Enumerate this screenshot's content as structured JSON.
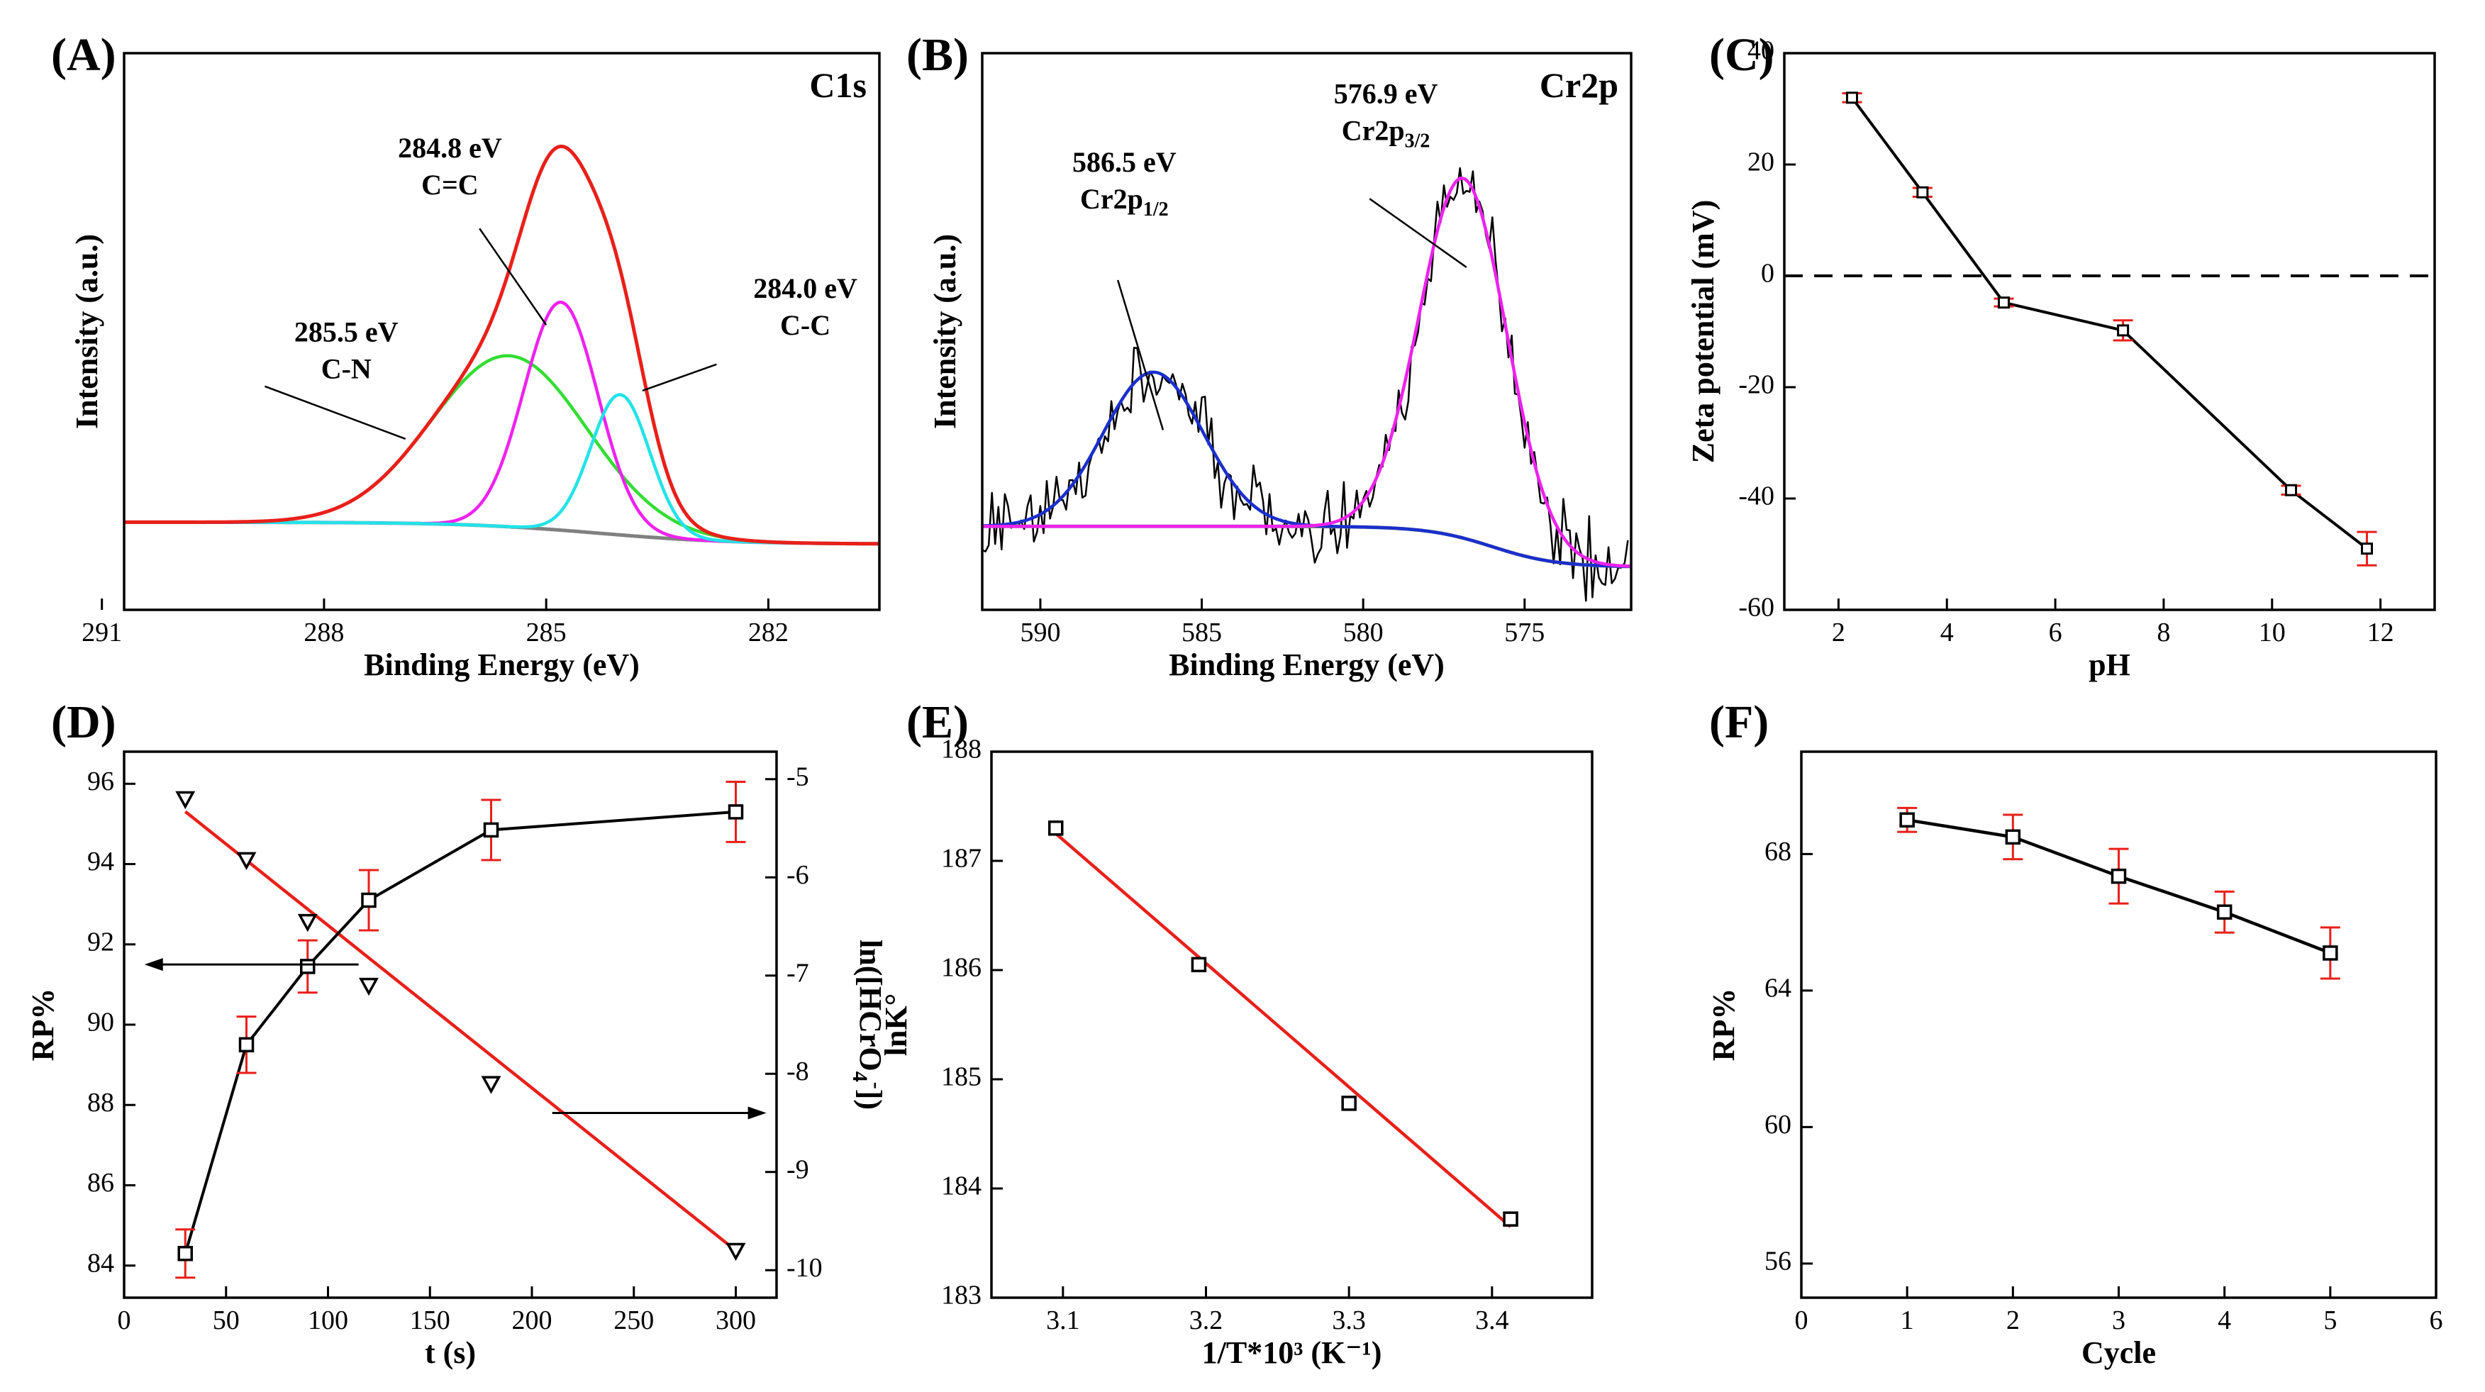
{
  "chart_data": [
    {
      "panel": "A",
      "panel_label": "(A)",
      "type": "line",
      "title": "C1s",
      "xlabel": "Binding Energy (eV)",
      "ylabel": "Intensity (a.u.)",
      "xlim": [
        290.7,
        280.5
      ],
      "ylim": [
        -0.15,
        1.12
      ],
      "xticks": [
        291,
        288,
        285,
        282
      ],
      "xtick_labels": [
        "291",
        "288",
        "285",
        "282"
      ],
      "yticks": [],
      "colors": {
        "envelope": "#e8201a",
        "background": "#808080",
        "cn": "#33dd33",
        "cc_double": "#ee22ee",
        "cc": "#22e3e8"
      },
      "series": [
        {
          "name": "Background",
          "kind": "background",
          "color": "#808080",
          "base_high": 0.05,
          "base_low": 0.0,
          "center": 284.3,
          "width": 0.9
        },
        {
          "name": "C-N",
          "kind": "peak",
          "color": "#33dd33",
          "center": 285.5,
          "amplitude": 0.39,
          "sigma": 1.05
        },
        {
          "name": "C=C",
          "kind": "peak",
          "color": "#ee22ee",
          "center": 284.8,
          "amplitude": 0.52,
          "sigma": 0.5
        },
        {
          "name": "C-C",
          "kind": "peak",
          "color": "#22e3e8",
          "center": 284.0,
          "amplitude": 0.32,
          "sigma": 0.4
        },
        {
          "name": "Envelope",
          "kind": "envelope",
          "color": "#e8201a"
        }
      ],
      "annotations": [
        {
          "energy": "285.5 eV",
          "label": "C-N",
          "sub": "",
          "tx": 287.7,
          "ty": 0.42,
          "ax": 286.9,
          "ay": 0.24,
          "bx": 288.8,
          "by": 0.36
        },
        {
          "energy": "284.8 eV",
          "label": "C=C",
          "sub": "",
          "tx": 286.3,
          "ty": 0.84,
          "ax": 285.9,
          "ay": 0.72,
          "bx": 285.0,
          "by": 0.5
        },
        {
          "energy": "284.0 eV",
          "label": "C-C",
          "sub": "",
          "tx": 281.5,
          "ty": 0.52,
          "ax": 282.7,
          "ay": 0.41,
          "bx": 283.7,
          "by": 0.35
        }
      ]
    },
    {
      "panel": "B",
      "panel_label": "(B)",
      "type": "line",
      "title": "Cr2p",
      "xlabel": "Binding Energy (eV)",
      "ylabel": "Intensity (a.u.)",
      "xlim": [
        591.8,
        571.7
      ],
      "ylim": [
        -0.1,
        1.2
      ],
      "xticks": [
        590,
        585,
        580,
        575
      ],
      "xtick_labels": [
        "590",
        "585",
        "580",
        "575"
      ],
      "yticks": [],
      "colors": {
        "raw": "#000000",
        "background": "#808080",
        "cr2p12": "#1a2fcc",
        "cr2p32": "#ee22ee"
      },
      "series": [
        {
          "name": "Raw data",
          "kind": "raw",
          "color": "#000000",
          "noise": 0.06,
          "step": 0.1
        },
        {
          "name": "Background",
          "kind": "background",
          "color": "#808080",
          "base_high": 0.095,
          "base_low": 0.0,
          "center": 576.0,
          "width": 1.0
        },
        {
          "name": "Cr2p1/2",
          "kind": "peak",
          "color": "#1a2fcc",
          "center": 586.5,
          "amplitude": 0.36,
          "sigma": 1.55
        },
        {
          "name": "Cr2p3/2",
          "kind": "peak",
          "color": "#ee22ee",
          "center": 576.9,
          "amplitude": 0.84,
          "sigma": 1.35
        }
      ],
      "annotations": [
        {
          "energy": "586.5 eV",
          "label": "Cr2p",
          "sub": "1/2",
          "tx": 587.4,
          "ty": 0.88,
          "ax": 587.6,
          "ay": 0.67,
          "bx": 586.2,
          "by": 0.32
        },
        {
          "energy": "576.9 eV",
          "label": "Cr2p",
          "sub": "3/2",
          "tx": 579.3,
          "ty": 1.04,
          "ax": 579.8,
          "ay": 0.86,
          "bx": 576.8,
          "by": 0.7
        }
      ]
    },
    {
      "panel": "C",
      "panel_label": "(C)",
      "type": "line",
      "title": "",
      "xlabel": "pH",
      "ylabel": "Zeta potential (mV)",
      "xlim": [
        1,
        13
      ],
      "ylim": [
        -60,
        40
      ],
      "xticks": [
        2,
        4,
        6,
        8,
        10,
        12
      ],
      "xtick_labels": [
        "2",
        "4",
        "6",
        "8",
        "10",
        "12"
      ],
      "yticks": [
        -60,
        -40,
        -20,
        0,
        20,
        40
      ],
      "ytick_labels": [
        "-60",
        "-40",
        "-20",
        "0",
        "20",
        "40"
      ],
      "reference_line": {
        "y": 0,
        "style": "dashed"
      },
      "series": [
        {
          "name": "Zeta potential",
          "color": "#000000",
          "marker": "square",
          "x": [
            2.25,
            3.55,
            5.05,
            7.25,
            10.35,
            11.75
          ],
          "y": [
            32.0,
            15.0,
            -4.8,
            -9.8,
            -38.5,
            -49.0
          ],
          "err": [
            0.8,
            0.8,
            0.7,
            1.8,
            0.8,
            3.0
          ]
        }
      ]
    },
    {
      "panel": "D",
      "panel_label": "(D)",
      "type": "line",
      "title": "",
      "xlabel": "t (s)",
      "ylabel": "RP%",
      "y2label": "ln([HCrO4-])",
      "y2label_parts": [
        "ln([HCrO",
        "4",
        "-",
        "])"
      ],
      "xlim": [
        0,
        320
      ],
      "ylim": [
        83.2,
        96.8
      ],
      "y2lim": [
        -10.28,
        -4.72
      ],
      "xticks": [
        0,
        50,
        100,
        150,
        200,
        250,
        300
      ],
      "xtick_labels": [
        "0",
        "50",
        "100",
        "150",
        "200",
        "250",
        "300"
      ],
      "yticks": [
        84,
        86,
        88,
        90,
        92,
        94,
        96
      ],
      "ytick_labels": [
        "84",
        "86",
        "88",
        "90",
        "92",
        "94",
        "96"
      ],
      "y2ticks": [
        -10,
        -9,
        -8,
        -7,
        -6,
        -5
      ],
      "y2tick_labels": [
        "-10",
        "-9",
        "-8",
        "-7",
        "-6",
        "-5"
      ],
      "series": [
        {
          "name": "RP%",
          "axis": "left",
          "color": "#000000",
          "marker": "square",
          "connected": true,
          "x": [
            30,
            60,
            90,
            120,
            180,
            300
          ],
          "y": [
            84.3,
            89.5,
            91.45,
            93.1,
            94.85,
            95.3
          ],
          "err": [
            0.6,
            0.7,
            0.65,
            0.75,
            0.75,
            0.75
          ]
        },
        {
          "name": "ln([HCrO4-])",
          "axis": "right",
          "color": "#000000",
          "marker": "triangle-down",
          "connected": false,
          "x": [
            30,
            60,
            90,
            120,
            180,
            300
          ],
          "y": [
            -5.2,
            -5.82,
            -6.45,
            -7.1,
            -8.1,
            -9.8
          ]
        },
        {
          "name": "Linear fit",
          "axis": "right",
          "color": "#e8201a",
          "kind": "fit",
          "x": [
            30,
            300
          ],
          "y": [
            -5.33,
            -9.8
          ]
        }
      ],
      "annotations": [
        {
          "arrow": "left",
          "x1": 115,
          "x2": 10,
          "y": 91.5
        },
        {
          "arrow": "right",
          "x1": 210,
          "x2": 315,
          "y": 87.8
        }
      ]
    },
    {
      "panel": "E",
      "panel_label": "(E)",
      "type": "scatter",
      "title": "",
      "xlabel": "1/T*10³ (K⁻¹)",
      "ylabel": "lnK°",
      "xlim": [
        3.05,
        3.47
      ],
      "ylim": [
        183,
        188
      ],
      "xticks": [
        3.1,
        3.2,
        3.3,
        3.4
      ],
      "xtick_labels": [
        "3.1",
        "3.2",
        "3.3",
        "3.4"
      ],
      "yticks": [
        183,
        184,
        185,
        186,
        187,
        188
      ],
      "ytick_labels": [
        "183",
        "184",
        "185",
        "186",
        "187",
        "188"
      ],
      "series": [
        {
          "name": "lnK°",
          "color": "#000000",
          "marker": "square",
          "x": [
            3.095,
            3.195,
            3.3,
            3.413
          ],
          "y": [
            187.3,
            186.05,
            184.78,
            183.72
          ]
        },
        {
          "name": "Linear fit",
          "color": "#e8201a",
          "kind": "fit",
          "x": [
            3.095,
            3.413
          ],
          "y": [
            187.25,
            183.65
          ]
        }
      ]
    },
    {
      "panel": "F",
      "panel_label": "(F)",
      "type": "line",
      "title": "",
      "xlabel": "Cycle",
      "ylabel": "RP%",
      "xlim": [
        0,
        6
      ],
      "ylim": [
        55,
        71
      ],
      "xticks": [
        0,
        1,
        2,
        3,
        4,
        5,
        6
      ],
      "xtick_labels": [
        "0",
        "1",
        "2",
        "3",
        "4",
        "5",
        "6"
      ],
      "yticks": [
        56,
        60,
        64,
        68
      ],
      "ytick_labels": [
        "56",
        "60",
        "64",
        "68"
      ],
      "series": [
        {
          "name": "RP%",
          "color": "#000000",
          "marker": "square",
          "x": [
            1,
            2,
            3,
            4,
            5
          ],
          "y": [
            69.0,
            68.5,
            67.35,
            66.3,
            65.1
          ],
          "err": [
            0.35,
            0.65,
            0.8,
            0.6,
            0.75
          ]
        }
      ]
    }
  ]
}
